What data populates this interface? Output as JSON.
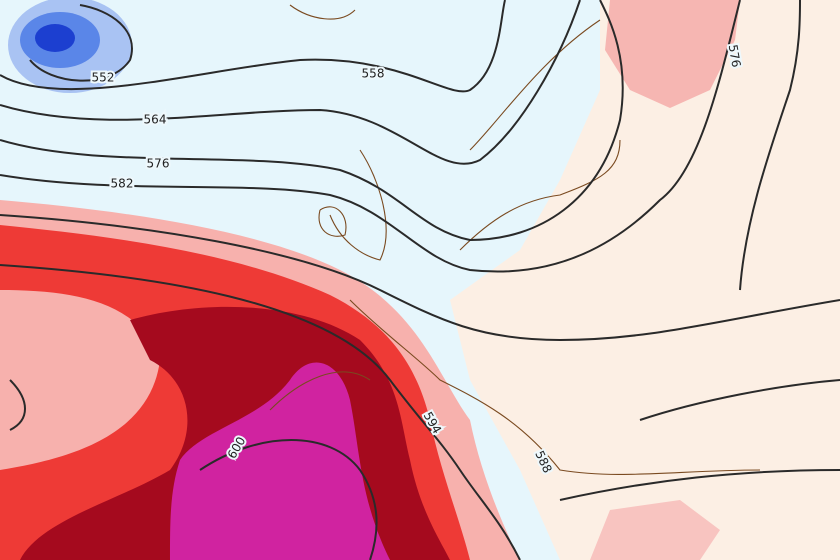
{
  "contour_labels": [
    552,
    558,
    564,
    576,
    582,
    594,
    588,
    600,
    576
  ]
}
